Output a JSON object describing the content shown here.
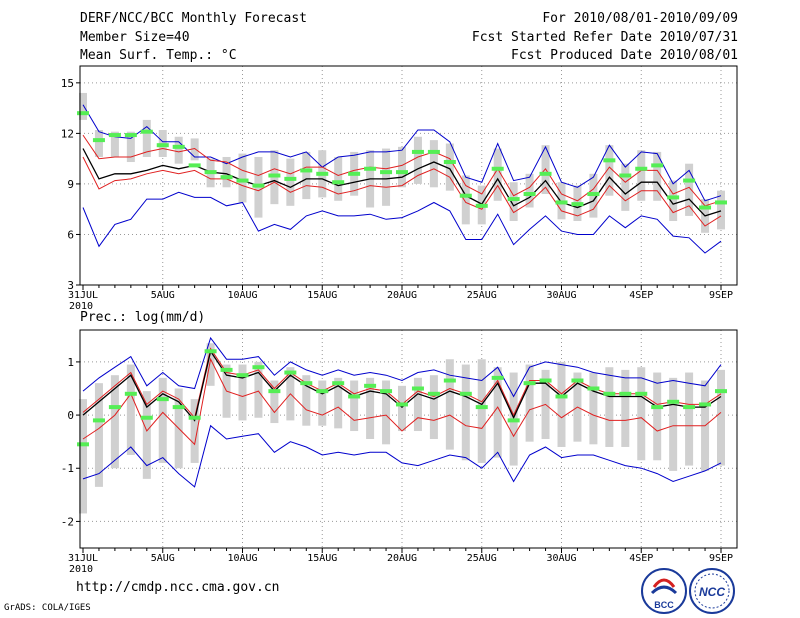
{
  "header": {
    "title": "DERF/NCC/BCC Monthly Forecast",
    "member_size": "Member Size=40",
    "variable": "Mean Surf. Temp.: °C",
    "period": "For 2010/08/01-2010/09/09",
    "fcst_started": "Fcst Started Refer Date 2010/07/31",
    "fcst_produced": "Fcst Produced Date 2010/08/01"
  },
  "precip_label": "Prec.: log(mm/d)",
  "footer_url": "http://cmdp.ncc.cma.gov.cn",
  "credit": "GrADS: COLA/IGES",
  "logos": {
    "bcc": "BCC",
    "ncc": "NCC"
  },
  "colors": {
    "ensemble_mean": "#000000",
    "inner_bound": "#e02020",
    "outer_bound": "#0000cc",
    "box": "#d0d0d0",
    "observed": "#55ee55"
  },
  "chart_data": [
    {
      "type": "line",
      "title": "Mean Surf. Temp.: °C",
      "x_tick_labels": [
        "31JUL",
        "5AUG",
        "10AUG",
        "15AUG",
        "20AUG",
        "25AUG",
        "30AUG",
        "4SEP",
        "9SEP"
      ],
      "x_year_label": "2010",
      "ylim": [
        3,
        16
      ],
      "yticks": [
        3,
        6,
        9,
        12,
        15
      ],
      "series": [
        {
          "name": "ensemble_mean",
          "values": [
            11.1,
            9.3,
            9.6,
            9.6,
            9.8,
            10.1,
            9.9,
            10.1,
            9.7,
            9.6,
            9.2,
            8.9,
            9.2,
            8.8,
            9.3,
            9.3,
            8.9,
            9.1,
            9.3,
            9.3,
            9.4,
            9.9,
            10.3,
            9.9,
            8.3,
            7.8,
            9.3,
            7.7,
            8.2,
            9.2,
            7.9,
            7.6,
            8.0,
            9.4,
            8.4,
            9.1,
            9.1,
            7.8,
            8.1,
            7.1,
            7.4
          ]
        },
        {
          "name": "upper_red",
          "values": [
            11.9,
            10.5,
            10.6,
            10.6,
            10.9,
            11.1,
            10.9,
            11.1,
            10.4,
            10.3,
            9.8,
            9.5,
            9.9,
            9.6,
            10.0,
            10.0,
            9.5,
            9.8,
            10.0,
            9.9,
            10.1,
            10.6,
            10.9,
            10.5,
            8.9,
            8.4,
            9.9,
            8.3,
            8.8,
            9.9,
            8.4,
            8.0,
            8.7,
            10.0,
            9.1,
            9.8,
            9.8,
            8.4,
            8.8,
            7.7,
            8.0
          ]
        },
        {
          "name": "lower_red",
          "values": [
            10.6,
            8.7,
            9.2,
            9.3,
            9.6,
            9.8,
            9.6,
            9.8,
            9.3,
            9.3,
            8.9,
            8.6,
            9.1,
            8.5,
            8.9,
            8.8,
            8.4,
            8.6,
            8.9,
            8.8,
            8.9,
            9.5,
            9.9,
            9.4,
            7.9,
            7.5,
            8.9,
            7.3,
            7.9,
            8.8,
            7.4,
            7.1,
            7.5,
            8.9,
            8.0,
            8.6,
            8.6,
            7.3,
            7.7,
            6.5,
            7.1
          ]
        },
        {
          "name": "upper_blue",
          "values": [
            13.7,
            12.1,
            11.8,
            11.7,
            12.4,
            11.5,
            11.5,
            10.6,
            10.6,
            10.2,
            10.6,
            10.9,
            10.9,
            10.6,
            10.9,
            10.0,
            10.6,
            10.7,
            10.9,
            10.9,
            11.0,
            12.2,
            12.2,
            11.5,
            9.4,
            9.1,
            11.4,
            9.2,
            9.4,
            11.2,
            9.1,
            8.8,
            9.4,
            11.3,
            10.0,
            10.9,
            10.8,
            9.0,
            9.8,
            8.0,
            8.3
          ]
        },
        {
          "name": "lower_blue",
          "values": [
            7.6,
            5.3,
            6.6,
            6.9,
            8.1,
            8.1,
            8.5,
            8.2,
            8.2,
            7.7,
            7.9,
            6.2,
            6.6,
            6.3,
            7.1,
            7.4,
            7.1,
            7.1,
            7.2,
            6.9,
            7.0,
            7.4,
            7.9,
            7.4,
            5.7,
            5.7,
            7.2,
            5.4,
            6.3,
            7.1,
            6.2,
            6.0,
            6.0,
            7.1,
            6.4,
            7.1,
            6.9,
            5.9,
            5.8,
            4.9,
            5.6
          ]
        },
        {
          "name": "box_top",
          "values": [
            14.4,
            12.2,
            12.1,
            12.1,
            12.8,
            12.2,
            11.8,
            11.7,
            10.5,
            10.6,
            10.8,
            10.6,
            11.0,
            10.5,
            10.9,
            11.0,
            10.6,
            10.9,
            11.0,
            11.1,
            11.2,
            11.8,
            11.6,
            11.4,
            9.5,
            8.9,
            11.1,
            9.1,
            9.6,
            11.3,
            9.1,
            8.9,
            9.6,
            11.3,
            10.2,
            11.0,
            10.9,
            9.2,
            10.2,
            8.1,
            8.6
          ]
        },
        {
          "name": "box_bottom",
          "values": [
            12.8,
            10.6,
            10.6,
            10.3,
            10.6,
            10.6,
            10.2,
            10.4,
            8.8,
            8.8,
            7.9,
            7.0,
            7.8,
            7.7,
            8.1,
            8.2,
            8.0,
            8.3,
            7.6,
            7.7,
            8.8,
            9.0,
            8.8,
            8.6,
            6.6,
            6.6,
            8.0,
            6.8,
            7.6,
            8.4,
            6.9,
            6.8,
            7.0,
            8.3,
            7.4,
            8.0,
            8.0,
            6.8,
            7.1,
            6.1,
            6.3
          ]
        },
        {
          "name": "observed",
          "values": [
            13.2,
            11.6,
            11.9,
            11.9,
            12.1,
            11.3,
            11.2,
            10.1,
            9.7,
            9.4,
            9.2,
            8.9,
            9.5,
            9.3,
            9.8,
            9.6,
            9.1,
            9.6,
            9.9,
            9.7,
            9.7,
            10.9,
            10.9,
            10.3,
            8.3,
            7.7,
            9.9,
            8.1,
            8.4,
            9.6,
            7.9,
            7.8,
            8.4,
            10.4,
            9.5,
            9.9,
            10.1,
            8.2,
            9.2,
            7.6,
            7.9
          ]
        }
      ]
    },
    {
      "type": "line",
      "title": "Prec.: log(mm/d)",
      "x_tick_labels": [
        "31JUL",
        "5AUG",
        "10AUG",
        "15AUG",
        "20AUG",
        "25AUG",
        "30AUG",
        "4SEP",
        "9SEP"
      ],
      "x_year_label": "2010",
      "ylim": [
        -2.5,
        1.6
      ],
      "yticks": [
        -2,
        -1,
        0,
        1
      ],
      "series": [
        {
          "name": "ensemble_mean",
          "values": [
            0.0,
            0.25,
            0.5,
            0.75,
            0.15,
            0.4,
            0.25,
            -0.1,
            1.2,
            0.75,
            0.7,
            0.8,
            0.45,
            0.75,
            0.55,
            0.4,
            0.55,
            0.35,
            0.45,
            0.4,
            0.15,
            0.4,
            0.3,
            0.45,
            0.35,
            0.2,
            0.6,
            -0.05,
            0.6,
            0.6,
            0.35,
            0.6,
            0.45,
            0.35,
            0.35,
            0.35,
            0.15,
            0.2,
            0.15,
            0.15,
            0.35
          ]
        },
        {
          "name": "upper_red",
          "values": [
            0.05,
            0.3,
            0.55,
            0.8,
            0.2,
            0.45,
            0.3,
            -0.05,
            1.25,
            0.8,
            0.75,
            0.85,
            0.5,
            0.8,
            0.6,
            0.45,
            0.6,
            0.4,
            0.5,
            0.45,
            0.2,
            0.45,
            0.35,
            0.5,
            0.4,
            0.25,
            0.65,
            0.0,
            0.65,
            0.65,
            0.4,
            0.65,
            0.5,
            0.4,
            0.4,
            0.4,
            0.2,
            0.25,
            0.2,
            0.2,
            0.4
          ]
        },
        {
          "name": "lower_red",
          "values": [
            -0.45,
            -0.25,
            0.0,
            0.4,
            -0.3,
            0.05,
            -0.25,
            -0.55,
            1.05,
            0.45,
            0.35,
            0.45,
            0.05,
            0.4,
            0.1,
            0.0,
            0.15,
            -0.1,
            -0.05,
            0.0,
            -0.3,
            -0.05,
            -0.1,
            0.0,
            -0.2,
            -0.25,
            0.15,
            -0.4,
            0.1,
            0.2,
            -0.05,
            0.15,
            0.0,
            -0.1,
            -0.1,
            -0.05,
            -0.3,
            -0.2,
            -0.2,
            -0.2,
            0.05
          ]
        },
        {
          "name": "upper_blue",
          "values": [
            0.45,
            0.7,
            0.9,
            1.1,
            0.55,
            0.8,
            0.55,
            0.5,
            1.45,
            1.05,
            1.05,
            1.1,
            0.75,
            1.0,
            0.85,
            0.75,
            0.85,
            0.75,
            0.8,
            0.75,
            0.65,
            0.8,
            0.85,
            0.75,
            0.7,
            0.65,
            0.9,
            0.35,
            0.9,
            1.0,
            0.95,
            0.9,
            0.8,
            0.75,
            0.7,
            0.7,
            0.6,
            0.65,
            0.6,
            0.55,
            0.95
          ]
        },
        {
          "name": "lower_blue",
          "values": [
            -1.2,
            -1.1,
            -0.85,
            -0.6,
            -0.95,
            -0.8,
            -1.1,
            -1.35,
            -0.2,
            -0.45,
            -0.4,
            -0.35,
            -0.7,
            -0.5,
            -0.6,
            -0.75,
            -0.7,
            -0.75,
            -0.7,
            -0.7,
            -0.9,
            -0.95,
            -0.85,
            -0.75,
            -0.8,
            -1.0,
            -0.7,
            -1.25,
            -0.75,
            -0.6,
            -0.8,
            -0.75,
            -0.75,
            -0.85,
            -0.95,
            -1.0,
            -1.1,
            -1.25,
            -1.15,
            -1.05,
            -0.9
          ]
        },
        {
          "name": "box_top",
          "values": [
            0.3,
            0.6,
            0.75,
            0.95,
            0.45,
            0.7,
            0.5,
            0.3,
            1.35,
            0.95,
            0.95,
            1.0,
            0.65,
            0.9,
            0.75,
            0.65,
            0.7,
            0.65,
            0.7,
            0.65,
            0.55,
            0.7,
            0.75,
            1.05,
            0.95,
            1.05,
            0.9,
            0.8,
            0.95,
            0.85,
            1.0,
            0.8,
            0.8,
            0.9,
            0.85,
            0.9,
            0.8,
            0.7,
            0.8,
            0.65,
            0.85
          ]
        },
        {
          "name": "box_bottom",
          "values": [
            -1.85,
            -1.35,
            -1.0,
            -0.75,
            -1.2,
            -0.9,
            -1.0,
            -0.9,
            0.55,
            -0.05,
            -0.1,
            -0.05,
            -0.15,
            -0.1,
            -0.2,
            -0.2,
            -0.25,
            -0.3,
            -0.45,
            -0.55,
            -0.3,
            -0.3,
            -0.45,
            -0.65,
            -0.85,
            -0.9,
            -0.8,
            -0.95,
            -0.5,
            -0.45,
            -0.6,
            -0.5,
            -0.55,
            -0.6,
            -0.6,
            -0.85,
            -0.85,
            -1.05,
            -0.95,
            -1.05,
            -0.95
          ]
        },
        {
          "name": "observed",
          "values": [
            -0.55,
            -0.1,
            0.15,
            0.4,
            -0.05,
            0.3,
            0.15,
            -0.05,
            1.2,
            0.85,
            0.75,
            0.9,
            0.45,
            0.8,
            0.6,
            0.45,
            0.6,
            0.35,
            0.55,
            0.45,
            0.2,
            0.5,
            0.4,
            0.65,
            0.4,
            0.15,
            0.7,
            -0.1,
            0.6,
            0.65,
            0.35,
            0.65,
            0.5,
            0.4,
            0.4,
            0.4,
            0.15,
            0.25,
            0.15,
            0.2,
            0.45
          ]
        }
      ]
    }
  ]
}
